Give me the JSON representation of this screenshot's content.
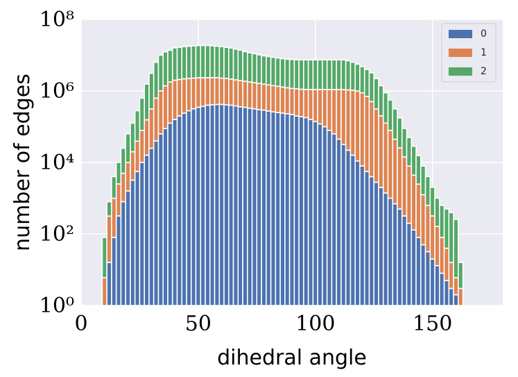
{
  "chart_data": {
    "type": "stacked_histogram",
    "x_label": "dihedral angle",
    "y_label": "number of edges",
    "log_y": true,
    "grid": true,
    "legend": "upper right",
    "xlim": [
      0,
      180
    ],
    "xticks": [
      0,
      50,
      100,
      150
    ],
    "ylim": [
      1,
      100000000
    ],
    "yticks": [
      {
        "value": 1,
        "label": "10⁰"
      },
      {
        "value": 100,
        "label": "10²"
      },
      {
        "value": 10000,
        "label": "10⁴"
      },
      {
        "value": 1000000,
        "label": "10⁶"
      },
      {
        "value": 100000000,
        "label": "10⁸"
      }
    ],
    "bins": [
      9,
      11,
      13,
      15,
      17,
      19,
      21,
      23,
      25,
      27,
      29,
      31,
      33,
      35,
      37,
      39,
      41,
      43,
      45,
      47,
      49,
      51,
      53,
      55,
      57,
      59,
      61,
      63,
      65,
      67,
      69,
      71,
      73,
      75,
      77,
      79,
      81,
      83,
      85,
      87,
      89,
      91,
      93,
      95,
      97,
      99,
      101,
      103,
      105,
      107,
      109,
      111,
      113,
      115,
      117,
      119,
      121,
      123,
      125,
      127,
      129,
      131,
      133,
      135,
      137,
      139,
      141,
      143,
      145,
      147,
      149,
      151,
      153,
      155,
      157,
      159,
      161,
      163
    ],
    "series": [
      {
        "name": "0",
        "color": "#4c72b0",
        "values": [
          0,
          16,
          80,
          320,
          800,
          1600,
          3200,
          5600,
          10000,
          16000,
          25000,
          40000,
          63000,
          89000,
          126000,
          160000,
          200000,
          240000,
          280000,
          316000,
          350000,
          370000,
          400000,
          410000,
          420000,
          420000,
          410000,
          400000,
          380000,
          360000,
          350000,
          330000,
          316000,
          300000,
          290000,
          275000,
          260000,
          250000,
          240000,
          230000,
          220000,
          200000,
          190000,
          180000,
          160000,
          140000,
          120000,
          100000,
          79000,
          63000,
          45000,
          32000,
          22000,
          16000,
          11000,
          8000,
          5600,
          4000,
          2800,
          2000,
          1400,
          1000,
          700,
          500,
          320,
          200,
          130,
          80,
          50,
          32,
          20,
          13,
          8,
          5,
          3,
          2,
          1
        ]
      },
      {
        "name": "1",
        "color": "#dd8452",
        "values": [
          6,
          300,
          920,
          2200,
          4200,
          8400,
          16800,
          34000,
          69000,
          140000,
          290000,
          590000,
          940000,
          1300000,
          1650000,
          1840000,
          1890000,
          1950000,
          1960000,
          1980000,
          1990000,
          1970000,
          1950000,
          1940000,
          1930000,
          1870000,
          1830000,
          1740000,
          1660000,
          1590000,
          1510000,
          1450000,
          1380000,
          1320000,
          1260000,
          1200000,
          1150000,
          1100000,
          1050000,
          1000000,
          960000,
          950000,
          930000,
          920000,
          940000,
          960000,
          980000,
          1000000,
          1020000,
          1030000,
          1050000,
          1060000,
          1050000,
          1030000,
          990000,
          880000,
          700000,
          500000,
          310000,
          200000,
          125000,
          78000,
          44000,
          25000,
          14000,
          7700,
          4300,
          2400,
          1200,
          600,
          300,
          150,
          72,
          35,
          13,
          4,
          2
        ]
      },
      {
        "name": "2",
        "color": "#55a868",
        "values": [
          74,
          480,
          3000,
          7500,
          20000,
          53000,
          106000,
          240000,
          550000,
          1400000,
          2800000,
          5700000,
          9000000,
          11000000,
          12000000,
          14000000,
          14500000,
          15200000,
          15600000,
          15900000,
          16300000,
          16300000,
          16300000,
          15900000,
          15500000,
          15100000,
          14400000,
          13700000,
          12700000,
          11900000,
          10700000,
          9900000,
          9300000,
          8600000,
          8000000,
          7700000,
          7300000,
          7000000,
          6700000,
          6500000,
          6400000,
          6300000,
          6300000,
          6300000,
          6300000,
          6300000,
          6300000,
          6300000,
          6300000,
          6300000,
          6300000,
          6300000,
          5900000,
          5300000,
          4600000,
          3900000,
          3300000,
          2700000,
          1900000,
          1200000,
          760000,
          480000,
          270000,
          150000,
          75000,
          42000,
          24000,
          13000,
          6700,
          3400,
          1700,
          840,
          550,
          460,
          380,
          250,
          13
        ]
      }
    ]
  }
}
